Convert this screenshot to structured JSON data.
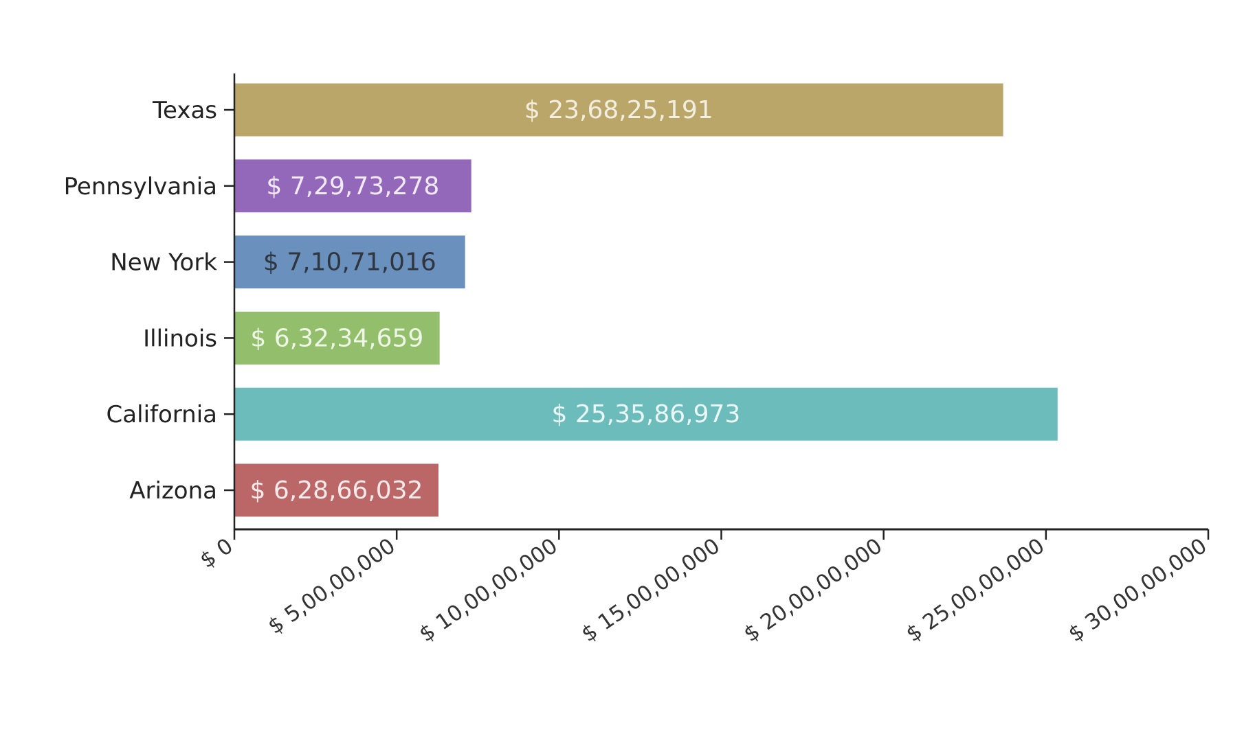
{
  "chart_data": {
    "type": "bar",
    "orientation": "horizontal",
    "title": "",
    "xlabel": "",
    "ylabel": "",
    "categories": [
      "Texas",
      "Pennsylvania",
      "New York",
      "Illinois",
      "California",
      "Arizona"
    ],
    "values": [
      236825191,
      72973278,
      71071016,
      63234659,
      253586973,
      62866032
    ],
    "data_labels": [
      "$ 23,68,25,191",
      "$ 7,29,73,278",
      "$ 7,10,71,016",
      "$ 6,32,34,659",
      "$ 25,35,86,973",
      "$ 6,28,66,032"
    ],
    "colors": [
      "#bba66a",
      "#9368bb",
      "#6a91bd",
      "#93bf6c",
      "#6bbcbb",
      "#bc6767"
    ],
    "label_colors": [
      "#f3efe0",
      "#f1eaf8",
      "#2f3640",
      "#eef6e6",
      "#eaf7f6",
      "#f8eaea"
    ],
    "xlim": [
      0,
      300000000
    ],
    "x_ticks": [
      0,
      50000000,
      100000000,
      150000000,
      200000000,
      250000000,
      300000000
    ],
    "x_tick_labels": [
      "$ 0",
      "$ 5,00,00,000",
      "$ 10,00,00,000",
      "$ 15,00,00,000",
      "$ 20,00,00,000",
      "$ 25,00,00,000",
      "$ 30,00,00,000"
    ],
    "grid": false,
    "legend": "none"
  }
}
